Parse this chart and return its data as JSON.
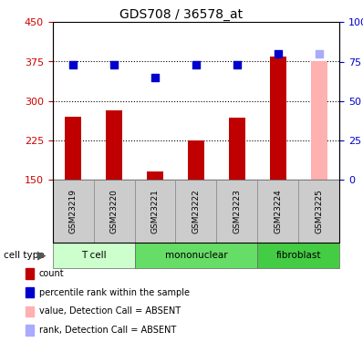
{
  "title": "GDS708 / 36578_at",
  "samples": [
    "GSM23219",
    "GSM23220",
    "GSM23221",
    "GSM23222",
    "GSM23223",
    "GSM23224",
    "GSM23225"
  ],
  "counts": [
    270,
    282,
    165,
    225,
    268,
    385,
    375
  ],
  "percentiles": [
    73,
    73,
    65,
    73,
    73,
    80,
    80
  ],
  "absent_flags": [
    false,
    false,
    false,
    false,
    false,
    false,
    true
  ],
  "left_ylim": [
    150,
    450
  ],
  "left_yticks": [
    150,
    225,
    300,
    375,
    450
  ],
  "right_ylim": [
    0,
    100
  ],
  "right_yticks": [
    0,
    25,
    50,
    75,
    100
  ],
  "right_yticklabels": [
    "0",
    "25",
    "50",
    "75",
    "100%"
  ],
  "bar_color": "#c00000",
  "bar_absent_color": "#ffb0b0",
  "dot_color": "#0000cc",
  "dot_absent_color": "#aaaaff",
  "left_axis_color": "#cc0000",
  "right_axis_color": "#0000cc",
  "grid_color": "#000000",
  "grid_ticks": [
    225,
    300,
    375
  ],
  "groups": [
    {
      "label": "T cell",
      "indices": [
        0,
        1
      ],
      "color": "#ccffcc"
    },
    {
      "label": "mononuclear",
      "indices": [
        2,
        3,
        4
      ],
      "color": "#66dd66"
    },
    {
      "label": "fibroblast",
      "indices": [
        5,
        6
      ],
      "color": "#44cc44"
    }
  ],
  "sample_box_color": "#cccccc",
  "legend_items": [
    {
      "label": "count",
      "color": "#c00000"
    },
    {
      "label": "percentile rank within the sample",
      "color": "#0000cc"
    },
    {
      "label": "value, Detection Call = ABSENT",
      "color": "#ffb0b0"
    },
    {
      "label": "rank, Detection Call = ABSENT",
      "color": "#aaaaff"
    }
  ],
  "cell_type_label": "cell type",
  "bar_width": 0.4,
  "dot_size": 35,
  "figsize": [
    3.98,
    3.75
  ],
  "dpi": 100
}
